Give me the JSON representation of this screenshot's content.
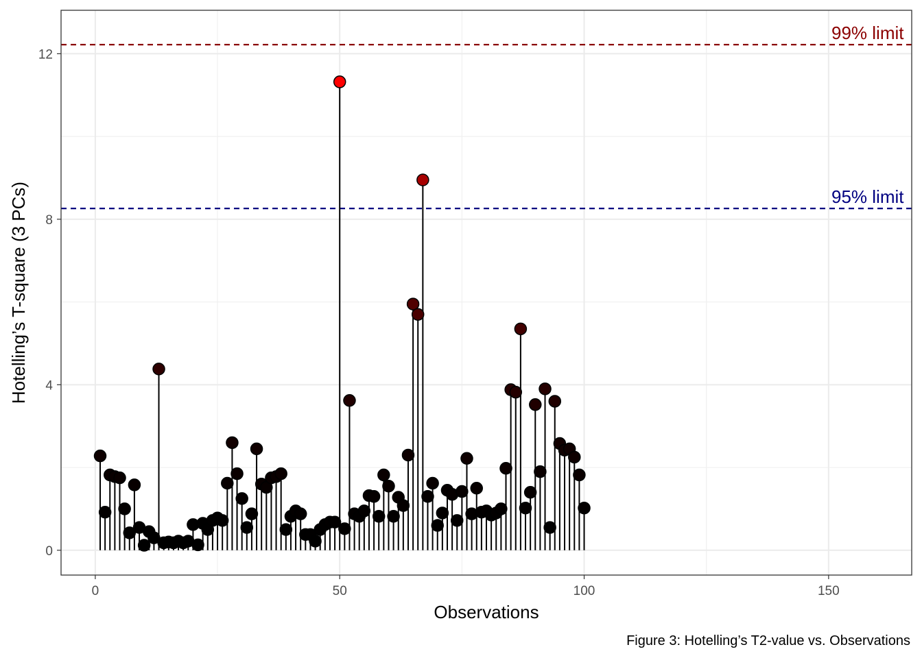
{
  "chart_data": {
    "type": "scatter",
    "style": "lollipop",
    "xlabel": "Observations",
    "ylabel": "Hotelling’s T-square (3 PCs)",
    "caption": "Figure 3: Hotelling’s T2-value vs. Observations",
    "xlim": [
      -7,
      167
    ],
    "ylim": [
      -0.6,
      13.05
    ],
    "xticks": [
      0,
      50,
      100,
      150
    ],
    "xtick_labels": [
      "0",
      "50",
      "100",
      "150"
    ],
    "yticks": [
      0,
      4,
      8,
      12
    ],
    "ytick_labels": [
      "0",
      "4",
      "8",
      "12"
    ],
    "grid": true,
    "limits": [
      {
        "label": "99% limit",
        "value": 12.22,
        "color": "#8b0000"
      },
      {
        "label": "95% limit",
        "value": 8.26,
        "color": "#000080"
      }
    ],
    "point_color_scale": {
      "low": "#000000",
      "high": "#ff0000"
    },
    "x": [
      1,
      2,
      3,
      4,
      5,
      6,
      7,
      8,
      9,
      10,
      11,
      12,
      13,
      14,
      15,
      16,
      17,
      18,
      19,
      20,
      21,
      22,
      23,
      24,
      25,
      26,
      27,
      28,
      29,
      30,
      31,
      32,
      33,
      34,
      35,
      36,
      37,
      38,
      39,
      40,
      41,
      42,
      43,
      44,
      45,
      46,
      47,
      48,
      49,
      50,
      51,
      52,
      53,
      54,
      55,
      56,
      57,
      58,
      59,
      60,
      61,
      62,
      63,
      64,
      65,
      66,
      67,
      68,
      69,
      70,
      71,
      72,
      73,
      74,
      75,
      76,
      77,
      78,
      79,
      80,
      81,
      82,
      83,
      84,
      85,
      86,
      87,
      88,
      89,
      90,
      91,
      92,
      93,
      94,
      95,
      96,
      97,
      98,
      99,
      100
    ],
    "y": [
      2.28,
      0.92,
      1.82,
      1.78,
      1.75,
      1.0,
      0.42,
      1.58,
      0.55,
      0.12,
      0.45,
      0.3,
      4.38,
      0.18,
      0.2,
      0.18,
      0.22,
      0.18,
      0.22,
      0.62,
      0.13,
      0.65,
      0.5,
      0.72,
      0.78,
      0.72,
      1.62,
      2.6,
      1.85,
      1.25,
      0.55,
      0.88,
      2.45,
      1.6,
      1.52,
      1.75,
      1.78,
      1.85,
      0.5,
      0.82,
      0.95,
      0.88,
      0.38,
      0.38,
      0.22,
      0.5,
      0.62,
      0.68,
      0.68,
      11.32,
      0.52,
      3.62,
      0.88,
      0.82,
      0.95,
      1.32,
      1.3,
      0.82,
      1.82,
      1.55,
      0.82,
      1.28,
      1.08,
      2.3,
      5.95,
      5.7,
      8.95,
      1.3,
      1.62,
      0.6,
      0.9,
      1.45,
      1.35,
      0.72,
      1.42,
      2.22,
      0.88,
      1.5,
      0.92,
      0.95,
      0.85,
      0.9,
      1.0,
      1.98,
      3.88,
      3.82,
      5.35,
      1.02,
      1.4,
      3.52,
      1.9,
      3.9,
      0.55,
      3.6,
      2.58,
      2.42,
      2.45,
      2.25,
      1.82,
      1.02
    ]
  }
}
